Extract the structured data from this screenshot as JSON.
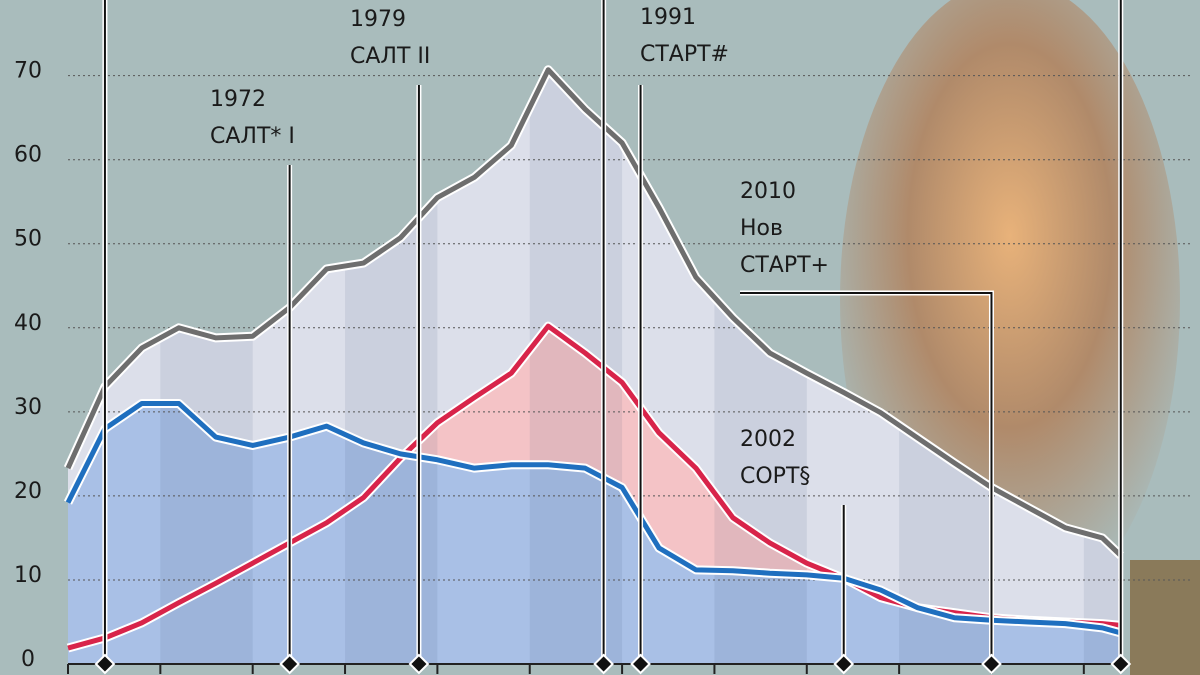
{
  "chart_data": {
    "type": "line",
    "x": [
      1960,
      1962,
      1964,
      1966,
      1968,
      1970,
      1972,
      1974,
      1976,
      1978,
      1980,
      1982,
      1984,
      1986,
      1988,
      1990,
      1992,
      1994,
      1996,
      1998,
      2000,
      2002,
      2004,
      2006,
      2008,
      2010,
      2012,
      2014,
      2016,
      2017
    ],
    "series": [
      {
        "color": "#6e6e6e",
        "values": [
          23.3,
          33,
          37.6,
          40,
          38.8,
          39,
          42.4,
          47,
          47.7,
          50.7,
          55.5,
          57.9,
          61.7,
          70.7,
          66,
          62,
          54.3,
          46,
          41.2,
          37,
          34.6,
          32.3,
          29.9,
          26.9,
          23.9,
          21,
          18.6,
          16.2,
          15,
          12.9
        ]
      },
      {
        "color": "#d8244a",
        "values": [
          1.9,
          3.1,
          4.9,
          7.3,
          9.6,
          12,
          14.4,
          16.8,
          19.8,
          24.5,
          28.7,
          31.7,
          34.6,
          40.2,
          37,
          33.5,
          27.5,
          23.3,
          17.4,
          14.4,
          12,
          10.2,
          7.9,
          6.7,
          6.1,
          5.5,
          5.2,
          5,
          4.8,
          4.6
        ]
      },
      {
        "color": "#1f6fbf",
        "values": [
          19.2,
          28,
          31,
          31,
          27,
          26,
          27,
          28.3,
          26.3,
          25,
          24.3,
          23.3,
          23.7,
          23.7,
          23.3,
          21,
          13.8,
          11.2,
          11.1,
          10.8,
          10.6,
          10.2,
          8.8,
          6.7,
          5.5,
          5.2,
          5,
          4.8,
          4.3,
          3.7
        ]
      }
    ],
    "xlim": [
      1960,
      2017.5
    ],
    "ylim": [
      0,
      79
    ],
    "yticks": [
      0,
      10,
      20,
      30,
      40,
      50,
      60,
      70
    ],
    "grid": true,
    "markers": [
      1962,
      1989,
      2017
    ],
    "annotations": [
      {
        "x": 1972,
        "lines": [
          "1972",
          "САЛТ* I"
        ]
      },
      {
        "x": 1979,
        "lines": [
          "1979",
          "САЛТ II"
        ]
      },
      {
        "x": 1991,
        "lines": [
          "1991",
          "СТАРТ#"
        ]
      },
      {
        "x": 2002,
        "lines": [
          "2002",
          "СОРТ§"
        ]
      },
      {
        "x": 2010,
        "lines": [
          "2010",
          "Нов",
          "СТАРТ+"
        ]
      }
    ]
  }
}
